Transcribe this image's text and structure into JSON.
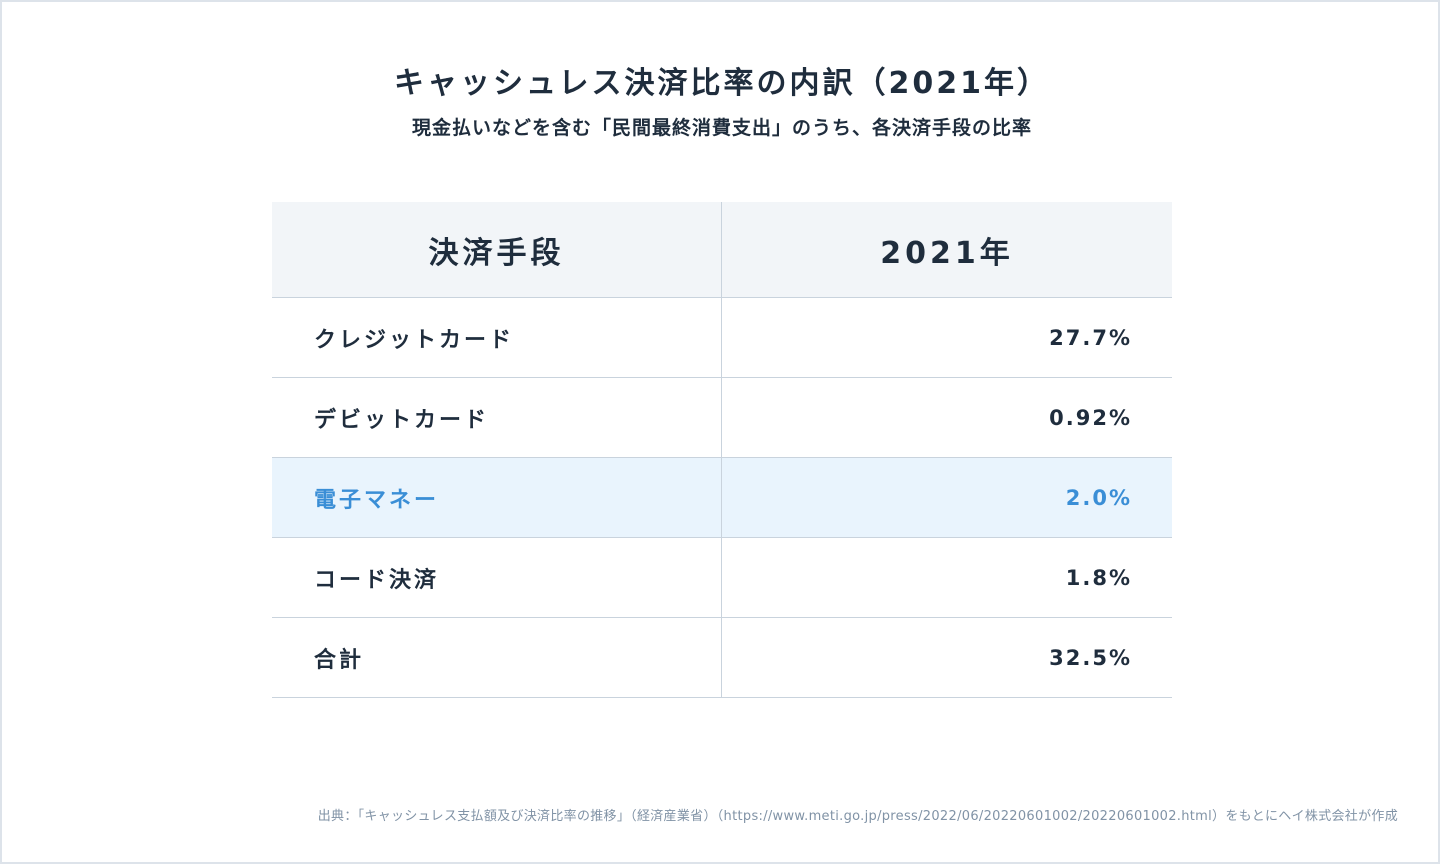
{
  "title": "キャッシュレス決済比率の内訳（2021年）",
  "subtitle": "現金払いなどを含む「民間最終消費支出」のうち、各決済手段の比率",
  "table": {
    "headers": [
      "決済手段",
      "2021年"
    ],
    "rows": [
      {
        "method": "クレジットカード",
        "value": "27.7%"
      },
      {
        "method": "デビットカード",
        "value": "0.92%"
      },
      {
        "method": "電子マネー",
        "value": "2.0%"
      },
      {
        "method": "コード決済",
        "value": "1.8%"
      },
      {
        "method": "合計",
        "value": "32.5%"
      }
    ],
    "highlight_color": "#3a8ed6",
    "highlight_background": "#e9f4fd",
    "header_background": "#f2f5f8"
  },
  "source": "出典：「キャッシュレス支払額及び決済比率の推移」（経済産業省）（https://www.meti.go.jp/press/2022/06/20220601002/20220601002.html）をもとにヘイ株式会社が作成"
}
